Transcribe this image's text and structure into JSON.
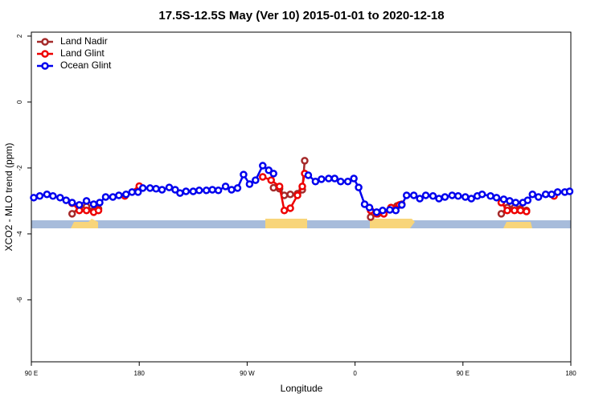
{
  "chart_data": {
    "type": "line",
    "title": "17.5S-12.5S May (Ver 10)   2015-01-01 to 2020-12-18",
    "x_label": "Longitude",
    "y_label": "XCO2 - MLO trend (ppm)",
    "xlim": [
      90,
      540
    ],
    "xticks": [
      {
        "value": 90,
        "label": "90 E"
      },
      {
        "value": 180,
        "label": "180"
      },
      {
        "value": 270,
        "label": "90 W"
      },
      {
        "value": 360,
        "label": "0"
      },
      {
        "value": 450,
        "label": "90 E"
      },
      {
        "value": 540,
        "label": "180"
      }
    ],
    "ylim": [
      -7.88,
      2.12
    ],
    "yticks": [
      2,
      0,
      -2,
      -4,
      -6
    ],
    "legend": "top-left",
    "series": [
      {
        "name": "Land Nadir",
        "color": "#a52a2a",
        "x": [
          124,
          130,
          136,
          142,
          146,
          null,
          292,
          297,
          301,
          306,
          312,
          316,
          318,
          null,
          373,
          379,
          384,
          390,
          395,
          399,
          null,
          482,
          487,
          493,
          498,
          503
        ],
        "values": [
          -3.39,
          -3.2,
          -3.17,
          -3.29,
          -3.24,
          null,
          -2.6,
          -2.63,
          -2.83,
          -2.8,
          -2.78,
          -2.66,
          -1.78,
          null,
          -3.49,
          -3.39,
          -3.39,
          -3.24,
          -3.15,
          -3.1,
          null,
          -3.39,
          -3.2,
          -3.2,
          -3.24,
          -3.29
        ]
      },
      {
        "name": "Land Glint",
        "color": "#ee0000",
        "x": [
          124,
          130,
          136,
          142,
          146,
          null,
          168,
          180,
          null,
          283,
          290,
          297,
          301,
          306,
          312,
          316,
          318,
          null,
          373,
          378,
          384,
          390,
          397,
          null,
          482,
          487,
          493,
          498,
          503,
          null,
          526
        ],
        "values": [
          -3.07,
          -3.29,
          -3.29,
          -3.34,
          -3.29,
          null,
          -2.85,
          -2.55,
          null,
          -2.27,
          -2.37,
          -2.56,
          -3.29,
          -3.22,
          -2.83,
          -2.56,
          -2.17,
          null,
          -3.29,
          -3.39,
          -3.39,
          -3.2,
          -3.12,
          null,
          -3.05,
          -3.29,
          -3.29,
          -3.29,
          -3.32,
          null,
          -2.85
        ]
      },
      {
        "name": "Ocean Glint",
        "color": "#0000ee",
        "x": [
          92,
          97,
          103,
          108,
          114,
          119,
          124,
          130,
          136,
          142,
          147,
          152,
          158,
          163,
          169,
          174,
          179,
          183,
          189,
          194,
          199,
          205,
          210,
          214,
          219,
          225,
          230,
          236,
          241,
          246,
          252,
          257,
          262,
          267,
          272,
          277,
          283,
          288,
          292,
          null,
          321,
          327,
          332,
          338,
          343,
          348,
          354,
          359,
          363,
          368,
          372,
          378,
          383,
          389,
          394,
          399,
          403,
          409,
          414,
          419,
          425,
          430,
          435,
          441,
          446,
          452,
          457,
          462,
          466,
          473,
          478,
          484,
          489,
          494,
          500,
          504,
          508,
          513,
          519,
          524,
          529,
          535,
          539
        ],
        "values": [
          -2.9,
          -2.85,
          -2.8,
          -2.85,
          -2.9,
          -2.98,
          -3.05,
          -3.12,
          -3.0,
          -3.1,
          -3.05,
          -2.88,
          -2.88,
          -2.83,
          -2.8,
          -2.73,
          -2.73,
          -2.61,
          -2.61,
          -2.63,
          -2.66,
          -2.59,
          -2.66,
          -2.76,
          -2.71,
          -2.71,
          -2.68,
          -2.68,
          -2.66,
          -2.68,
          -2.56,
          -2.66,
          -2.61,
          -2.2,
          -2.49,
          -2.37,
          -1.93,
          -2.07,
          -2.17,
          null,
          -2.22,
          -2.41,
          -2.34,
          -2.32,
          -2.32,
          -2.41,
          -2.41,
          -2.32,
          -2.59,
          -3.1,
          -3.2,
          -3.34,
          -3.29,
          -3.27,
          -3.29,
          -3.12,
          -2.83,
          -2.83,
          -2.93,
          -2.83,
          -2.85,
          -2.93,
          -2.88,
          -2.83,
          -2.85,
          -2.88,
          -2.93,
          -2.85,
          -2.8,
          -2.85,
          -2.9,
          -2.95,
          -3.0,
          -3.05,
          -3.05,
          -2.98,
          -2.8,
          -2.88,
          -2.8,
          -2.8,
          -2.73,
          -2.73,
          -2.71
        ]
      }
    ]
  }
}
